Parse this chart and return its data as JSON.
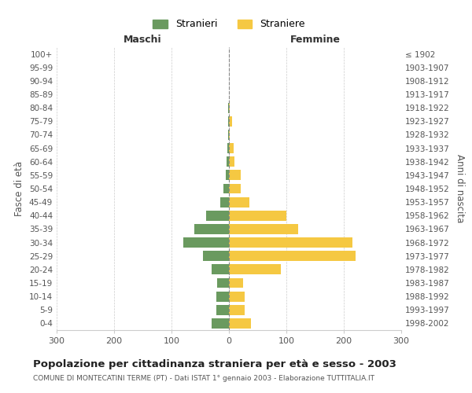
{
  "age_groups": [
    "0-4",
    "5-9",
    "10-14",
    "15-19",
    "20-24",
    "25-29",
    "30-34",
    "35-39",
    "40-44",
    "45-49",
    "50-54",
    "55-59",
    "60-64",
    "65-69",
    "70-74",
    "75-79",
    "80-84",
    "85-89",
    "90-94",
    "95-99",
    "100+"
  ],
  "birth_years": [
    "1998-2002",
    "1993-1997",
    "1988-1992",
    "1983-1987",
    "1978-1982",
    "1973-1977",
    "1968-1972",
    "1963-1967",
    "1958-1962",
    "1953-1957",
    "1948-1952",
    "1943-1947",
    "1938-1942",
    "1933-1937",
    "1928-1932",
    "1923-1927",
    "1918-1922",
    "1913-1917",
    "1908-1912",
    "1903-1907",
    "≤ 1902"
  ],
  "maschi": [
    30,
    22,
    22,
    20,
    30,
    45,
    80,
    60,
    40,
    15,
    10,
    5,
    4,
    3,
    2,
    1,
    2,
    0,
    0,
    0,
    0
  ],
  "femmine": [
    38,
    28,
    28,
    25,
    90,
    220,
    215,
    120,
    100,
    35,
    20,
    20,
    10,
    8,
    2,
    5,
    2,
    0,
    0,
    0,
    0
  ],
  "color_maschi": "#6a9a5f",
  "color_femmine": "#f5c842",
  "title": "Popolazione per cittadinanza straniera per età e sesso - 2003",
  "subtitle": "COMUNE DI MONTECATINI TERME (PT) - Dati ISTAT 1° gennaio 2003 - Elaborazione TUTTITALIA.IT",
  "xlabel_left": "Maschi",
  "xlabel_right": "Femmine",
  "ylabel_left": "Fasce di età",
  "ylabel_right": "Anni di nascita",
  "xlim": 300,
  "legend_stranieri": "Stranieri",
  "legend_straniere": "Straniere",
  "bg_color": "#ffffff",
  "grid_color": "#cccccc"
}
